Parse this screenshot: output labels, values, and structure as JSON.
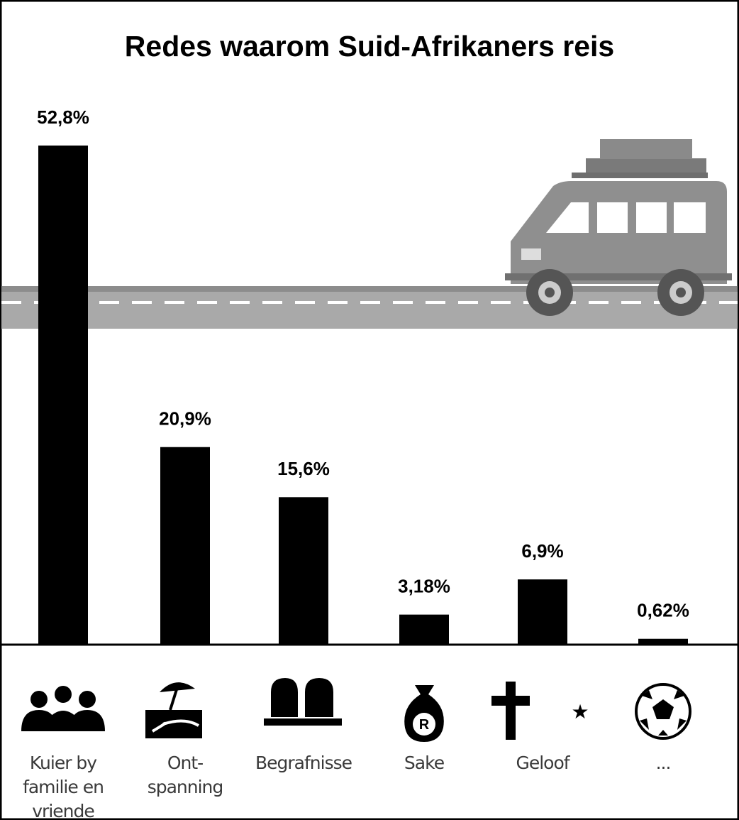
{
  "chart_data": {
    "type": "bar",
    "title": "Redes waarom Suid-Afrikaners reis",
    "categories": [
      "Kuier by\nfamilie en\nvriende",
      "Ont-\nspanning",
      "Begrafnisse",
      "Sake",
      "Geloof",
      "..."
    ],
    "values": [
      52.8,
      20.9,
      15.6,
      3.18,
      6.9,
      0.62
    ],
    "value_labels": [
      "52,8%",
      "20,9%",
      "15,6%",
      "3,18%",
      "6,9%",
      "0,62%"
    ],
    "color": "#000000"
  }
}
